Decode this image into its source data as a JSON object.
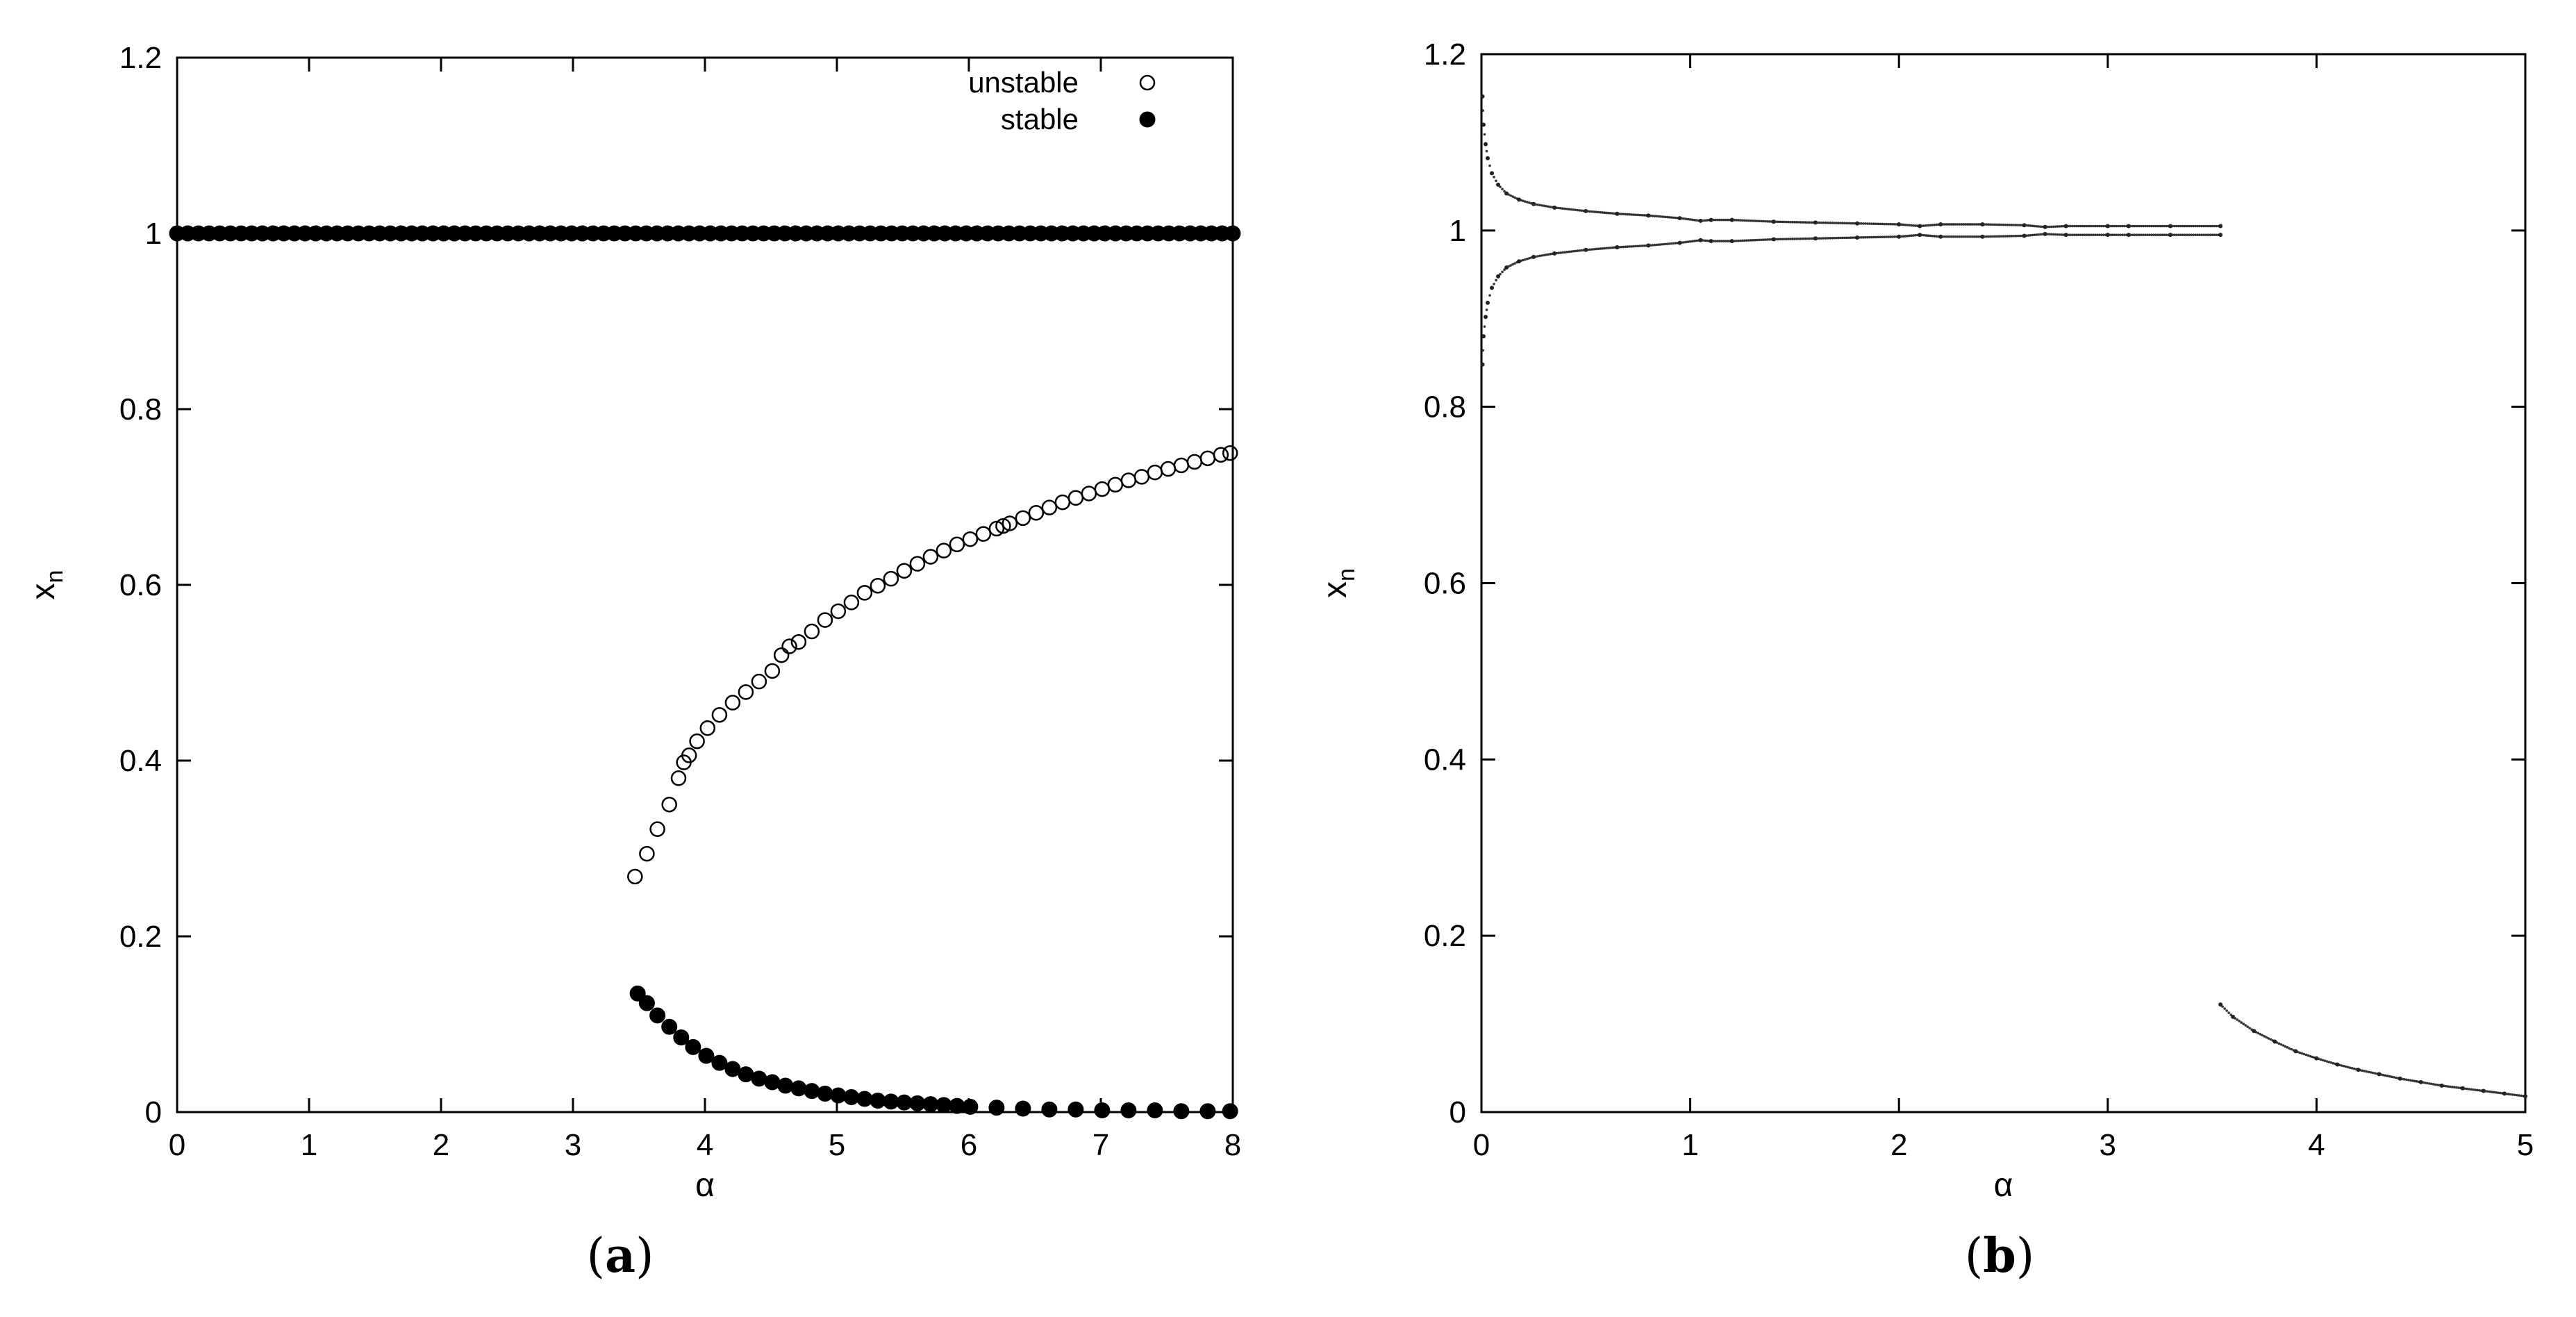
{
  "chart_data": [
    {
      "panel": "(a)",
      "type": "scatter",
      "xlabel": "α",
      "ylabel": "x",
      "ylabel_sub": "n",
      "xlim": [
        0,
        8
      ],
      "ylim": [
        0,
        1.2
      ],
      "xticks": [
        0,
        1,
        2,
        3,
        4,
        5,
        6,
        7,
        8
      ],
      "yticks": [
        0,
        0.2,
        0.4,
        0.6,
        0.8,
        1,
        1.2
      ],
      "ytick_labels": [
        "0",
        "0.2",
        "0.4",
        "0.6",
        "0.8",
        "1",
        "1.2"
      ],
      "legend": {
        "placement": "top-right"
      },
      "series": [
        {
          "name": "unstable",
          "marker": "open-circle",
          "x": [
            3.47,
            3.56,
            3.64,
            3.73,
            3.8,
            3.84,
            3.88,
            3.94,
            4.02,
            4.11,
            4.21,
            4.31,
            4.41,
            4.51,
            4.58,
            4.64,
            4.71,
            4.81,
            4.91,
            5.01,
            5.11,
            5.21,
            5.31,
            5.41,
            5.51,
            5.61,
            5.71,
            5.81,
            5.91,
            6.01,
            6.11,
            6.21,
            6.26,
            6.31,
            6.41,
            6.51,
            6.61,
            6.71,
            6.81,
            6.91,
            7.01,
            7.11,
            7.21,
            7.31,
            7.41,
            7.51,
            7.61,
            7.71,
            7.81,
            7.91,
            7.98
          ],
          "y": [
            0.268,
            0.294,
            0.322,
            0.35,
            0.38,
            0.398,
            0.406,
            0.422,
            0.437,
            0.452,
            0.466,
            0.478,
            0.49,
            0.502,
            0.52,
            0.53,
            0.535,
            0.547,
            0.56,
            0.57,
            0.58,
            0.591,
            0.599,
            0.607,
            0.616,
            0.624,
            0.632,
            0.639,
            0.646,
            0.652,
            0.658,
            0.664,
            0.667,
            0.67,
            0.676,
            0.682,
            0.688,
            0.694,
            0.699,
            0.704,
            0.709,
            0.714,
            0.719,
            0.723,
            0.728,
            0.732,
            0.736,
            0.74,
            0.744,
            0.748,
            0.75
          ]
        },
        {
          "name": "stable",
          "marker": "filled-circle",
          "x": [
            3.49,
            3.56,
            3.64,
            3.73,
            3.82,
            3.91,
            4.01,
            4.11,
            4.21,
            4.31,
            4.41,
            4.51,
            4.61,
            4.71,
            4.81,
            4.91,
            5.01,
            5.11,
            5.21,
            5.31,
            5.41,
            5.51,
            5.61,
            5.71,
            5.81,
            5.91,
            6.01,
            6.21,
            6.41,
            6.61,
            6.81,
            7.01,
            7.21,
            7.41,
            7.61,
            7.81,
            7.98
          ],
          "y": [
            0.135,
            0.124,
            0.11,
            0.097,
            0.085,
            0.074,
            0.064,
            0.056,
            0.049,
            0.043,
            0.038,
            0.034,
            0.03,
            0.027,
            0.024,
            0.021,
            0.019,
            0.017,
            0.015,
            0.013,
            0.012,
            0.011,
            0.01,
            0.009,
            0.008,
            0.007,
            0.006,
            0.005,
            0.004,
            0.003,
            0.003,
            0.002,
            0.002,
            0.002,
            0.001,
            0.001,
            0.001
          ]
        },
        {
          "name": "stable",
          "marker": "filled-circle",
          "x_range": [
            0,
            8
          ],
          "count": 100,
          "y_constant": 1
        }
      ]
    },
    {
      "panel": "(b)",
      "type": "scatter",
      "xlabel": "α",
      "ylabel": "x",
      "ylabel_sub": "n",
      "xlim": [
        0,
        5
      ],
      "ylim": [
        0,
        1.2
      ],
      "xticks": [
        0,
        1,
        2,
        3,
        4,
        5
      ],
      "yticks": [
        0,
        0.2,
        0.4,
        0.6,
        0.8,
        1,
        1.2
      ],
      "ytick_labels": [
        "0",
        "0.2",
        "0.4",
        "0.6",
        "0.8",
        "1",
        "1.2"
      ],
      "series": [
        {
          "marker": "dot",
          "x": [
            0.005,
            0.01,
            0.02,
            0.03,
            0.05,
            0.08,
            0.12,
            0.18,
            0.25,
            0.35,
            0.5,
            0.65,
            0.8,
            0.95,
            1.05,
            1.1,
            1.2,
            1.4,
            1.6,
            1.8,
            2.0,
            2.1,
            2.2,
            2.4,
            2.6,
            2.7,
            2.8,
            3.0,
            3.1,
            3.3,
            3.54
          ],
          "y": [
            1.152,
            1.12,
            1.098,
            1.082,
            1.065,
            1.052,
            1.042,
            1.035,
            1.03,
            1.026,
            1.022,
            1.019,
            1.017,
            1.014,
            1.011,
            1.012,
            1.012,
            1.01,
            1.009,
            1.008,
            1.007,
            1.005,
            1.007,
            1.007,
            1.006,
            1.004,
            1.005,
            1.005,
            1.005,
            1.005,
            1.005
          ]
        },
        {
          "marker": "dot",
          "x": [
            0.005,
            0.01,
            0.02,
            0.03,
            0.05,
            0.08,
            0.12,
            0.18,
            0.25,
            0.35,
            0.5,
            0.65,
            0.8,
            0.95,
            1.05,
            1.1,
            1.2,
            1.4,
            1.6,
            1.8,
            2.0,
            2.1,
            2.2,
            2.4,
            2.6,
            2.7,
            2.8,
            3.0,
            3.1,
            3.3,
            3.54
          ],
          "y": [
            0.848,
            0.88,
            0.902,
            0.918,
            0.935,
            0.948,
            0.958,
            0.965,
            0.97,
            0.974,
            0.978,
            0.981,
            0.983,
            0.986,
            0.989,
            0.988,
            0.988,
            0.99,
            0.991,
            0.992,
            0.993,
            0.995,
            0.993,
            0.993,
            0.994,
            0.996,
            0.995,
            0.995,
            0.995,
            0.995,
            0.995
          ]
        },
        {
          "marker": "dot",
          "x": [
            3.54,
            3.6,
            3.7,
            3.8,
            3.9,
            4.0,
            4.1,
            4.2,
            4.3,
            4.4,
            4.5,
            4.6,
            4.7,
            4.8,
            4.9,
            5.0
          ],
          "y": [
            0.122,
            0.108,
            0.092,
            0.08,
            0.069,
            0.061,
            0.054,
            0.048,
            0.043,
            0.038,
            0.034,
            0.03,
            0.027,
            0.024,
            0.021,
            0.018
          ]
        }
      ]
    }
  ],
  "captions": {
    "a_open": "(",
    "a_letter": "a",
    "a_close": ")",
    "b_open": "(",
    "b_letter": "b",
    "b_close": ")"
  }
}
